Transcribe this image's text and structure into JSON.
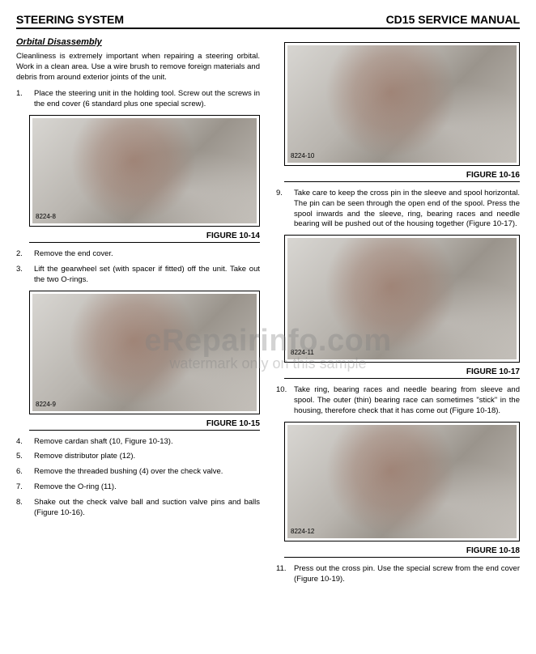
{
  "header": {
    "section": "STEERING SYSTEM",
    "manual": "CD15 SERVICE MANUAL"
  },
  "left": {
    "subhead": "Orbital Disassembly",
    "intro": "Cleanliness is extremely important when repairing a steering orbital. Work in a clean area. Use a wire brush to remove foreign materials and debris from around exterior joints of the unit.",
    "step1": {
      "num": "1.",
      "text": "Place the steering unit in the holding tool. Screw out the screws in the end cover (6 standard plus one special screw)."
    },
    "fig14": {
      "photo_id": "8224-8",
      "caption": "FIGURE 10-14"
    },
    "step2": {
      "num": "2.",
      "text": "Remove the end cover."
    },
    "step3": {
      "num": "3.",
      "text": "Lift the gearwheel set (with spacer if fitted) off the unit. Take out the two O-rings."
    },
    "fig15": {
      "photo_id": "8224-9",
      "caption": "FIGURE 10-15"
    },
    "step4": {
      "num": "4.",
      "text": "Remove cardan shaft (10, Figure 10-13)."
    },
    "step5": {
      "num": "5.",
      "text": "Remove distributor plate (12)."
    },
    "step6": {
      "num": "6.",
      "text": "Remove the threaded bushing (4) over the check valve."
    },
    "step7": {
      "num": "7.",
      "text": "Remove the O-ring (11)."
    },
    "step8": {
      "num": "8.",
      "text": "Shake out the check valve ball and suction valve pins and balls (Figure 10-16)."
    }
  },
  "right": {
    "fig16": {
      "photo_id": "8224-10",
      "caption": "FIGURE 10-16"
    },
    "step9": {
      "num": "9.",
      "text": "Take care to keep the cross pin in the sleeve and spool horizontal. The pin can be seen through the open end of the spool. Press the spool inwards and the sleeve, ring, bearing races and needle bearing will be pushed out of the housing together (Figure 10-17)."
    },
    "fig17": {
      "photo_id": "8224-11",
      "caption": "FIGURE 10-17"
    },
    "step10": {
      "num": "10.",
      "text": "Take ring, bearing races and needle bearing from sleeve and spool. The outer (thin) bearing race can sometimes \"stick\" in the housing, therefore check that it has come out (Figure 10-18)."
    },
    "fig18": {
      "photo_id": "8224-12",
      "caption": "FIGURE 10-18"
    },
    "step11": {
      "num": "11.",
      "text": "Press out the cross pin. Use the special screw from the end cover (Figure 10-19)."
    }
  },
  "watermark": {
    "line1": "eRepairinfo.com",
    "line2": "watermark only on this sample"
  },
  "colors": {
    "text": "#000000",
    "bg": "#ffffff",
    "rule": "#000000",
    "wm": "rgba(128,128,128,0.35)"
  }
}
